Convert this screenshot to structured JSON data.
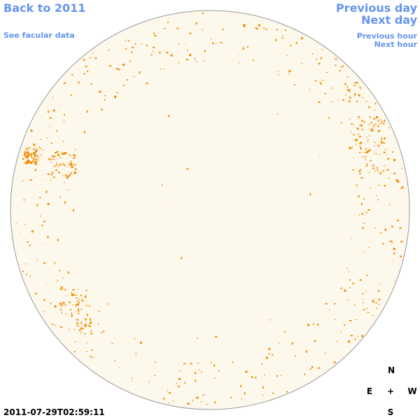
{
  "header": {
    "back_link": "Back to 2011",
    "facular_link": "See facular data",
    "previous_day": "Previous day",
    "next_day": "Next day",
    "previous_hour": "Previous hour",
    "next_hour": "Next hour"
  },
  "compass": {
    "north": "N",
    "east": "E",
    "center": "+",
    "west": "W",
    "south": "S"
  },
  "timestamp": "2011-07-29T02:59:11"
}
